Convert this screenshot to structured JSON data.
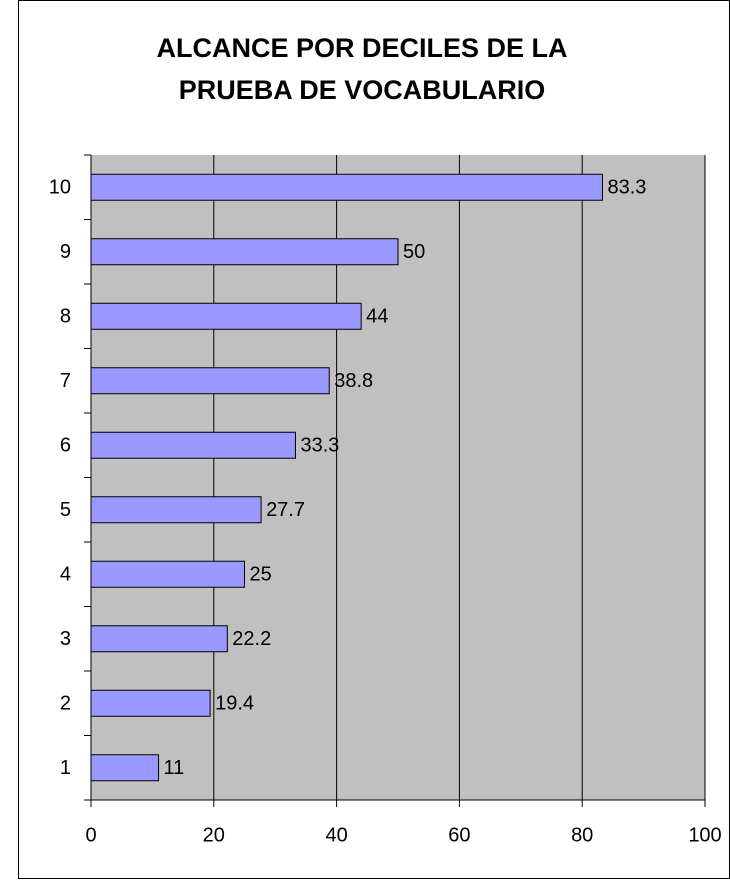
{
  "chart_data": {
    "type": "barh",
    "title": [
      "ALCANCE POR DECILES  DE LA",
      "PRUEBA DE VOCABULARIO"
    ],
    "categories": [
      "1",
      "2",
      "3",
      "4",
      "5",
      "6",
      "7",
      "8",
      "9",
      "10"
    ],
    "values": [
      11,
      19.4,
      22.2,
      25,
      27.7,
      33.3,
      38.8,
      44,
      50,
      83.3
    ],
    "color": "#9999ff",
    "xlim": [
      0,
      100
    ],
    "xticks": [
      0,
      20,
      40,
      60,
      80,
      100
    ],
    "grid": true,
    "plot_background": "#c0c0c0"
  }
}
